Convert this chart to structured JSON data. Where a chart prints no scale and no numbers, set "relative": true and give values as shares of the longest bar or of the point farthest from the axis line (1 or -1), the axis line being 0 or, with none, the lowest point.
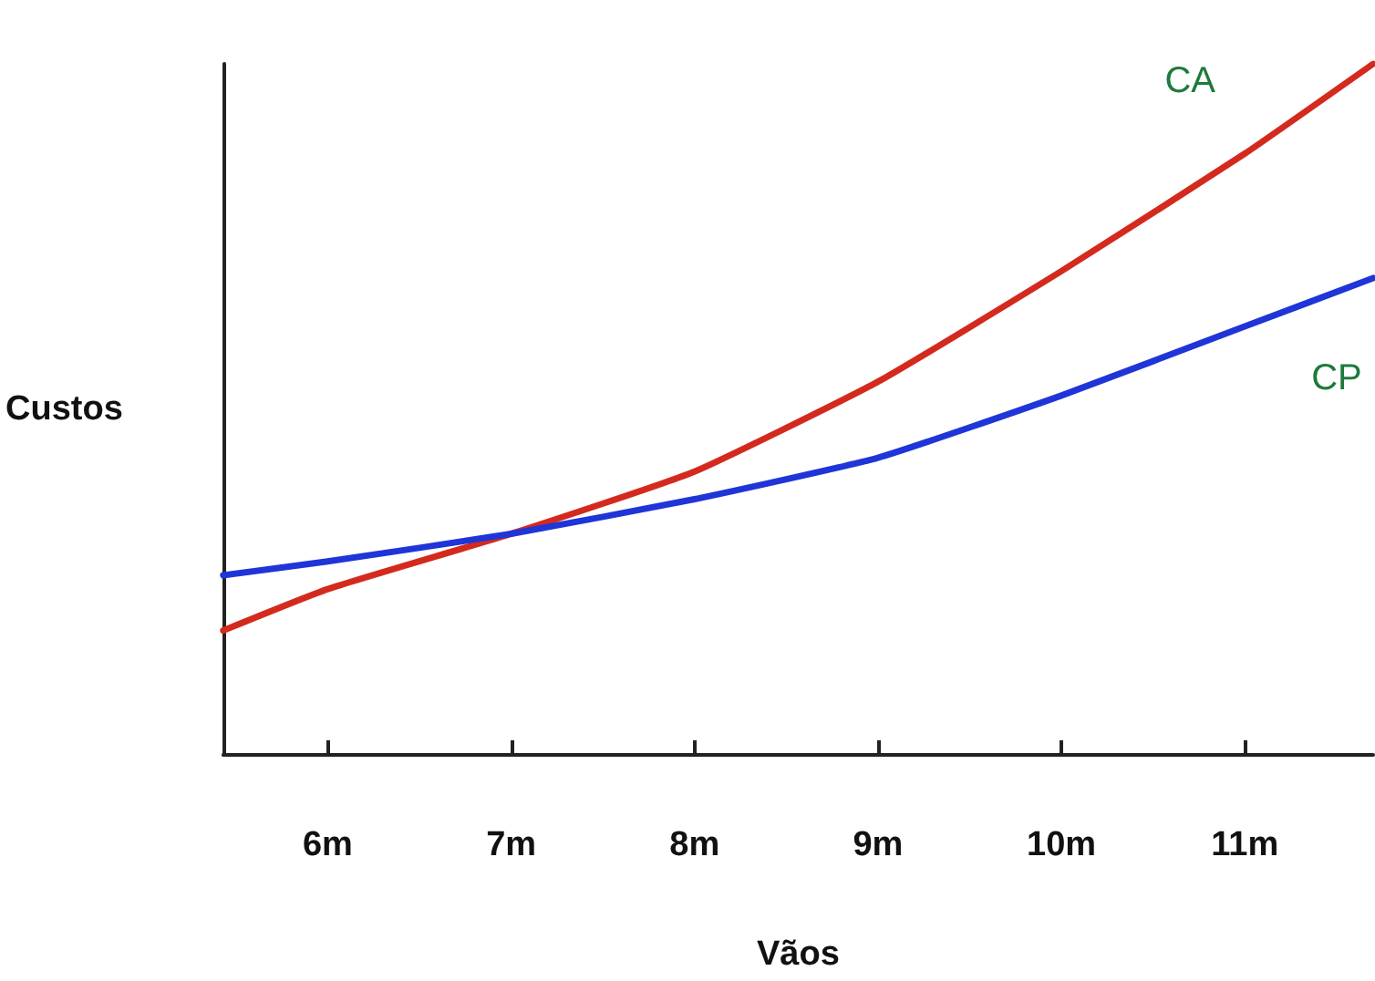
{
  "chart_data": {
    "type": "line",
    "relative": true,
    "xlabel": "Vãos",
    "ylabel": "Custos",
    "xlim": [
      5.43,
      11.7
    ],
    "xticks": [
      {
        "value": 6,
        "label": "6m"
      },
      {
        "value": 7,
        "label": "7m"
      },
      {
        "value": 8,
        "label": "8m"
      },
      {
        "value": 9,
        "label": "9m"
      },
      {
        "value": 10,
        "label": "10m"
      },
      {
        "value": 11,
        "label": "11m"
      }
    ],
    "x": [
      5.43,
      6,
      7,
      8,
      9,
      10,
      11,
      11.7
    ],
    "series": [
      {
        "name": "CA",
        "color": "#d42a1e",
        "values": [
          0.18,
          0.24,
          0.32,
          0.41,
          0.54,
          0.7,
          0.87,
          1
        ]
      },
      {
        "name": "CP",
        "color": "#1f35d8",
        "values": [
          0.26,
          0.28,
          0.32,
          0.37,
          0.43,
          0.52,
          0.62,
          0.69
        ]
      }
    ],
    "grid": false,
    "legend": false,
    "marker": "none",
    "line_style": "solid"
  }
}
